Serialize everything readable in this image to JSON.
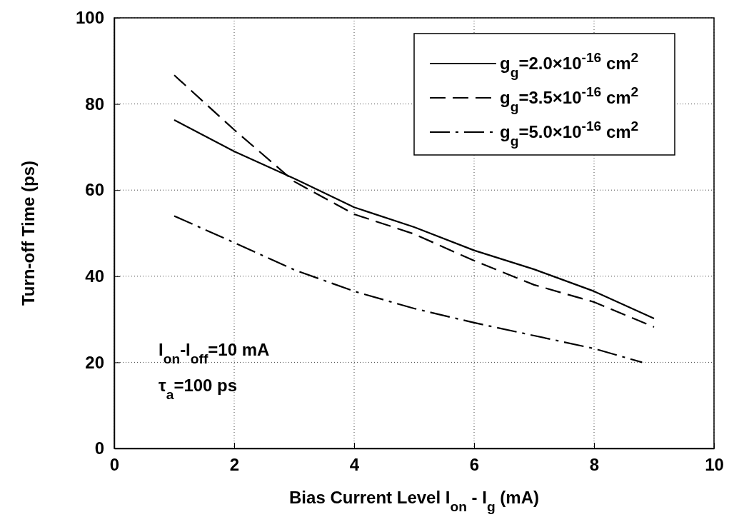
{
  "chart_data": {
    "type": "line",
    "xlabel": "Bias Current Level I$_{on}$ - I$_{g}$ (mA)",
    "ylabel": "Turn-off Time (ps)",
    "x": [
      1,
      2,
      3,
      4,
      5,
      6,
      7,
      8,
      9
    ],
    "series": [
      {
        "name": "g$_{g}$=2.0×10$^{-16}$ cm$^{2}$",
        "color": "#000000",
        "line_style": "solid",
        "values": [
          76.3,
          69,
          62.7,
          56,
          51.4,
          46,
          41.6,
          36.5,
          30.2
        ]
      },
      {
        "name": "g$_{g}$=3.5×10$^{-16}$ cm$^{2}$",
        "color": "#000000",
        "line_style": "dashed",
        "values": [
          86.7,
          74,
          62,
          54.4,
          49.8,
          43.6,
          38,
          34,
          28.2
        ]
      },
      {
        "name": "g$_{g}$=5.0×10$^{-16}$ cm$^{2}$",
        "color": "#000000",
        "line_style": "dashdot",
        "x": [
          1,
          2,
          3,
          4,
          5,
          6,
          7,
          8,
          8.8
        ],
        "values": [
          54,
          47.8,
          41.5,
          36.5,
          32.5,
          29.2,
          26.2,
          23.2,
          20
        ]
      }
    ],
    "annotations": [
      "I$_{on}$-I$_{off}$=10 mA",
      "τ$_{a}$=100 ps"
    ],
    "xlim": [
      0,
      10
    ],
    "xticks": [
      0,
      2,
      4,
      6,
      8,
      10
    ],
    "ylim": [
      0,
      100
    ],
    "yticks": [
      0,
      20,
      40,
      60,
      80,
      100
    ],
    "grid": true,
    "legend": "top right",
    "marker": "none"
  }
}
